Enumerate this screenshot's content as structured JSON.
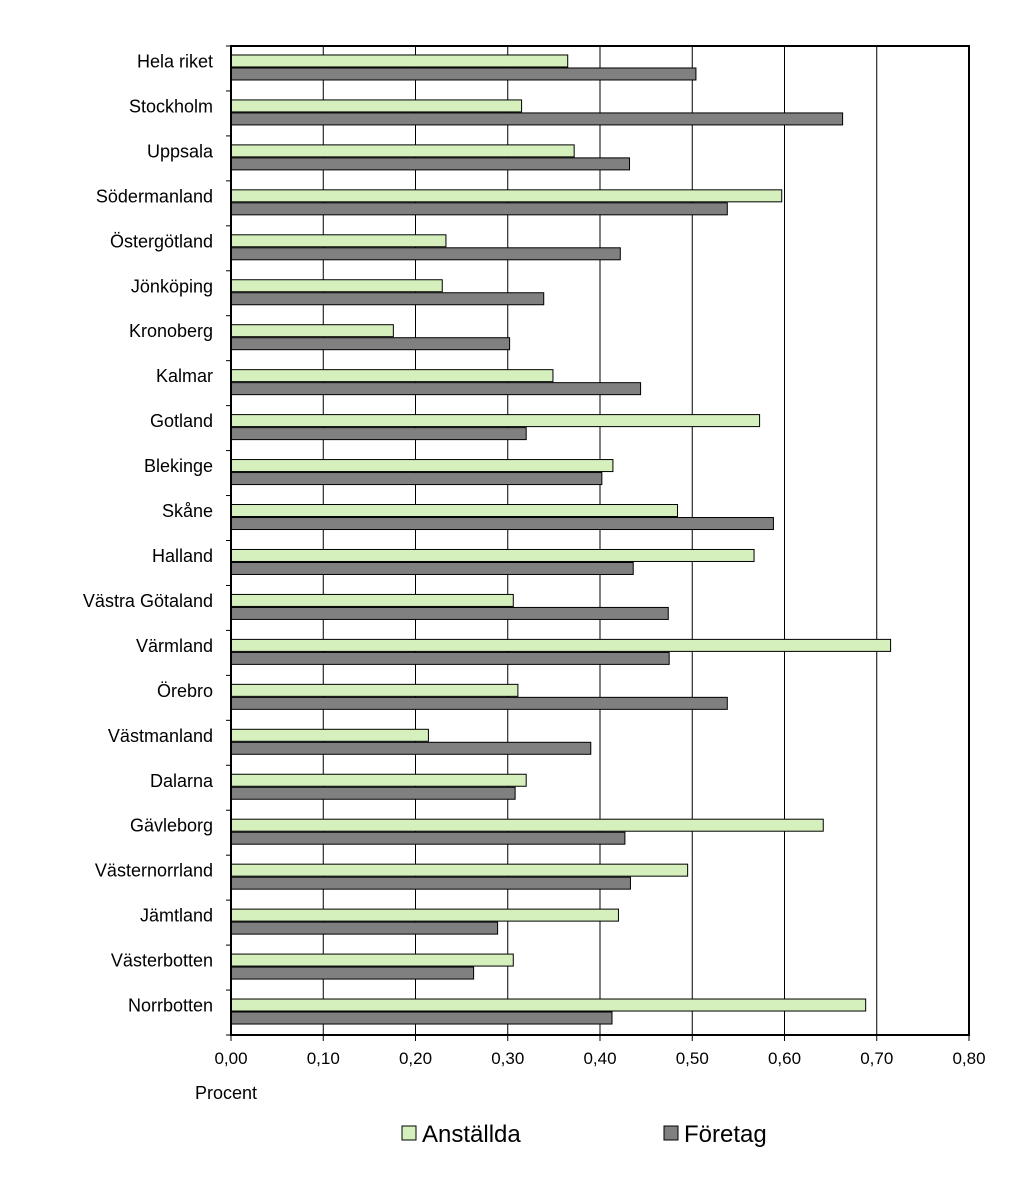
{
  "chart_data": {
    "type": "bar",
    "orientation": "horizontal",
    "categories": [
      "Hela riket",
      "Stockholm",
      "Uppsala",
      "Södermanland",
      "Östergötland",
      "Jönköping",
      "Kronoberg",
      "Kalmar",
      "Gotland",
      "Blekinge",
      "Skåne",
      "Halland",
      "Västra Götaland",
      "Värmland",
      "Örebro",
      "Västmanland",
      "Dalarna",
      "Gävleborg",
      "Västernorrland",
      "Jämtland",
      "Västerbotten",
      "Norrbotten"
    ],
    "series": [
      {
        "name": "Anställda",
        "color": "#d5f0bd",
        "values": [
          0.365,
          0.315,
          0.372,
          0.597,
          0.233,
          0.229,
          0.176,
          0.349,
          0.573,
          0.414,
          0.484,
          0.567,
          0.306,
          0.715,
          0.311,
          0.214,
          0.32,
          0.642,
          0.495,
          0.42,
          0.306,
          0.688
        ]
      },
      {
        "name": "Företag",
        "color": "#808080",
        "values": [
          0.504,
          0.663,
          0.432,
          0.538,
          0.422,
          0.339,
          0.302,
          0.444,
          0.32,
          0.402,
          0.588,
          0.436,
          0.474,
          0.475,
          0.538,
          0.39,
          0.308,
          0.427,
          0.433,
          0.289,
          0.263,
          0.413
        ]
      }
    ],
    "xlabel": "Procent",
    "xlim": [
      0,
      0.8
    ],
    "xticks": [
      "0,00",
      "0,10",
      "0,20",
      "0,30",
      "0,40",
      "0,50",
      "0,60",
      "0,70",
      "0,80"
    ],
    "grid": "vertical",
    "legend": "bottom"
  }
}
